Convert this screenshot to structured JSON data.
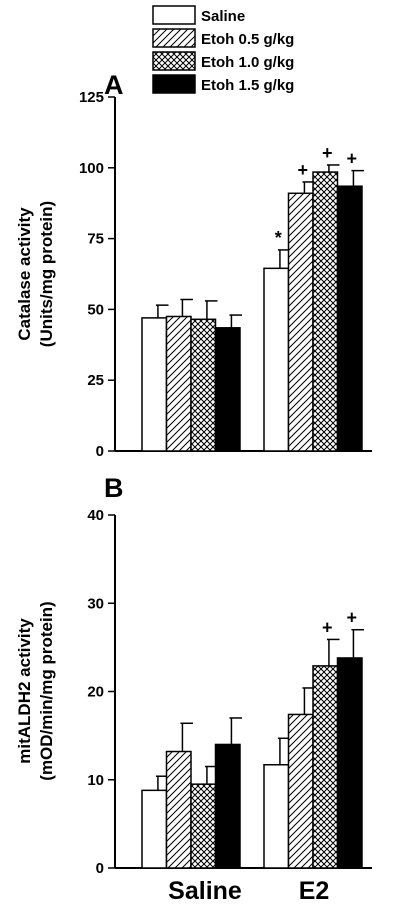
{
  "chart_data": [
    {
      "type": "bar",
      "panel": "A",
      "ylabel": [
        "Catalase activity",
        "(Units/mg protein)"
      ],
      "ylim": [
        0,
        125
      ],
      "yticks": [
        0,
        25,
        50,
        75,
        100,
        125
      ],
      "categories": [
        "Saline",
        "E2"
      ],
      "series": [
        {
          "name": "Saline",
          "values": [
            47,
            64.5
          ],
          "errors": [
            4.5,
            6.5
          ],
          "annotations": [
            "",
            "*"
          ]
        },
        {
          "name": "Etoh 0.5 g/kg",
          "values": [
            47.5,
            91
          ],
          "errors": [
            6,
            4
          ],
          "annotations": [
            "",
            "+"
          ]
        },
        {
          "name": "Etoh 1.0 g/kg",
          "values": [
            46.5,
            98.5
          ],
          "errors": [
            6.5,
            2.5
          ],
          "annotations": [
            "",
            "+"
          ]
        },
        {
          "name": "Etoh 1.5 g/kg",
          "values": [
            43.5,
            93.5
          ],
          "errors": [
            4.5,
            5.5
          ],
          "annotations": [
            "",
            "+"
          ]
        }
      ]
    },
    {
      "type": "bar",
      "panel": "B",
      "ylabel": [
        "mitALDH2 activity",
        "(mOD/min/mg protein)"
      ],
      "ylim": [
        0,
        40
      ],
      "yticks": [
        0,
        10,
        20,
        30,
        40
      ],
      "categories": [
        "Saline",
        "E2"
      ],
      "series": [
        {
          "name": "Saline",
          "values": [
            8.8,
            11.7
          ],
          "errors": [
            1.6,
            3
          ],
          "annotations": [
            "",
            ""
          ]
        },
        {
          "name": "Etoh 0.5 g/kg",
          "values": [
            13.2,
            17.4
          ],
          "errors": [
            3.2,
            3
          ],
          "annotations": [
            "",
            ""
          ]
        },
        {
          "name": "Etoh 1.0 g/kg",
          "values": [
            9.5,
            22.9
          ],
          "errors": [
            2,
            3
          ],
          "annotations": [
            "",
            "+"
          ]
        },
        {
          "name": "Etoh 1.5 g/kg",
          "values": [
            14,
            23.8
          ],
          "errors": [
            3,
            3.2
          ],
          "annotations": [
            "",
            "+"
          ]
        }
      ]
    }
  ],
  "legend": {
    "items": [
      "Saline",
      "Etoh 0.5 g/kg",
      "Etoh 1.0 g/kg",
      "Etoh 1.5 g/kg"
    ],
    "fills": [
      "white",
      "hatch",
      "crosshatch",
      "black"
    ],
    "placement": "top"
  },
  "x_group_labels": [
    "Saline",
    "E2"
  ]
}
